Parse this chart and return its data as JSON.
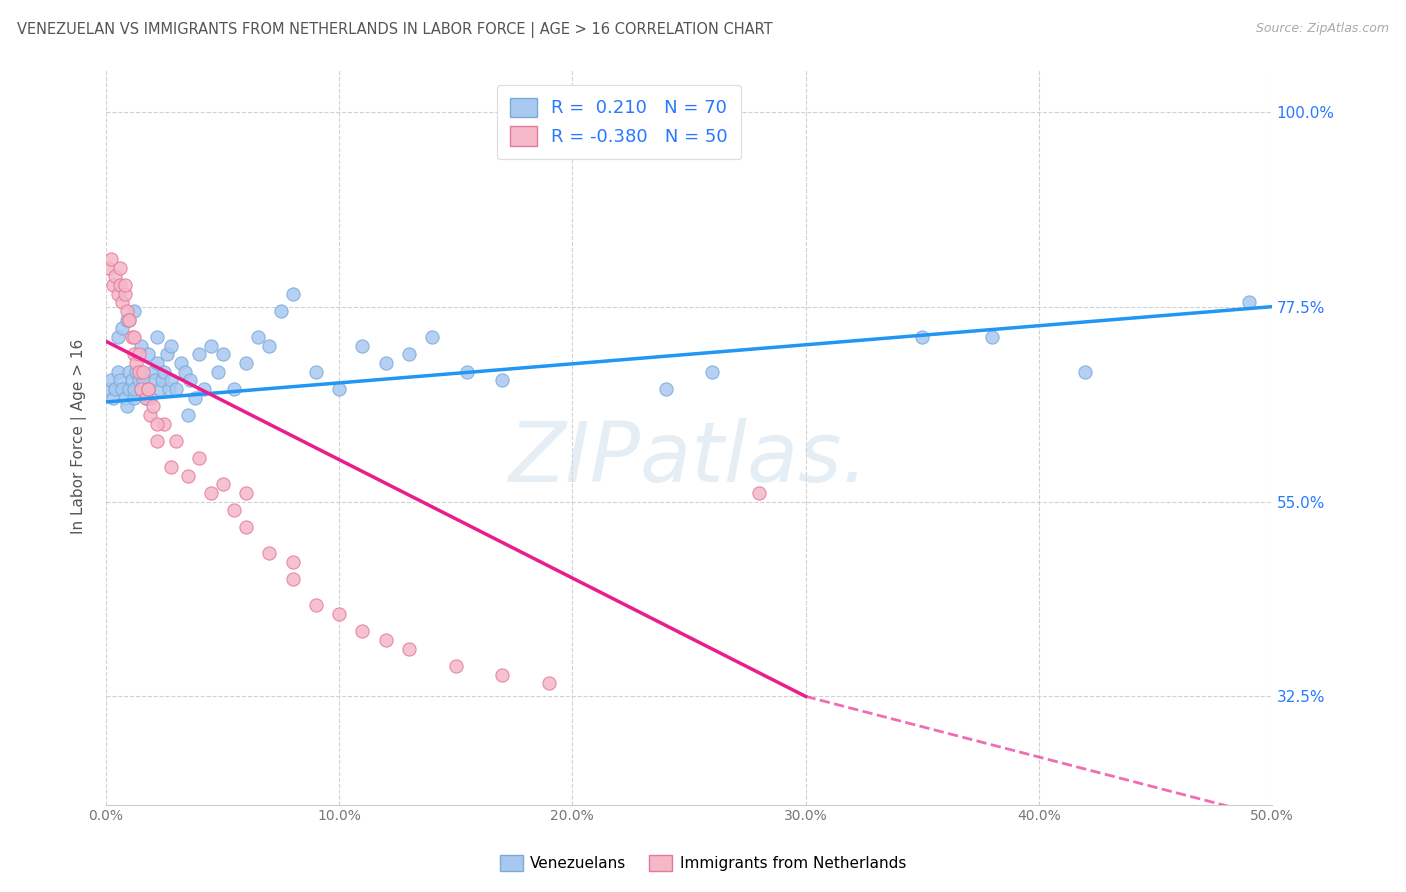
{
  "title": "VENEZUELAN VS IMMIGRANTS FROM NETHERLANDS IN LABOR FORCE | AGE > 16 CORRELATION CHART",
  "source": "Source: ZipAtlas.com",
  "ylabel": "In Labor Force | Age > 16",
  "xlim": [
    0.0,
    0.5
  ],
  "ylim": [
    0.2,
    1.05
  ],
  "yticks": [
    0.325,
    0.55,
    0.775,
    1.0
  ],
  "ytick_labels": [
    "32.5%",
    "55.0%",
    "77.5%",
    "100.0%"
  ],
  "xticks": [
    0.0,
    0.1,
    0.2,
    0.3,
    0.4,
    0.5
  ],
  "xtick_labels": [
    "0.0%",
    "10.0%",
    "20.0%",
    "30.0%",
    "40.0%",
    "50.0%"
  ],
  "blue_color": "#a8c8f0",
  "pink_color": "#f4b8c8",
  "blue_edge": "#7aaad8",
  "pink_edge": "#e8799a",
  "trend_blue": "#2196F3",
  "trend_pink": "#E91E8C",
  "legend_label_blue": "R =  0.210   N = 70",
  "legend_label_pink": "R = -0.380   N = 50",
  "legend_label_bottom_blue": "Venezuelans",
  "legend_label_bottom_pink": "Immigrants from Netherlands",
  "watermark": "ZIPatlas.",
  "background_color": "#ffffff",
  "title_color": "#555555",
  "axis_label_color": "#2979FF",
  "grid_color": "#cccccc",
  "blue_scatter_x": [
    0.001,
    0.002,
    0.003,
    0.004,
    0.005,
    0.006,
    0.007,
    0.008,
    0.009,
    0.01,
    0.01,
    0.011,
    0.012,
    0.012,
    0.013,
    0.014,
    0.015,
    0.015,
    0.016,
    0.017,
    0.018,
    0.019,
    0.02,
    0.021,
    0.022,
    0.023,
    0.024,
    0.025,
    0.026,
    0.027,
    0.028,
    0.03,
    0.032,
    0.034,
    0.036,
    0.038,
    0.04,
    0.042,
    0.045,
    0.048,
    0.05,
    0.055,
    0.06,
    0.065,
    0.07,
    0.075,
    0.08,
    0.09,
    0.1,
    0.11,
    0.12,
    0.13,
    0.14,
    0.155,
    0.17,
    0.005,
    0.007,
    0.009,
    0.012,
    0.015,
    0.018,
    0.022,
    0.028,
    0.035,
    0.24,
    0.26,
    0.35,
    0.38,
    0.42,
    0.49
  ],
  "blue_scatter_y": [
    0.68,
    0.69,
    0.67,
    0.68,
    0.7,
    0.69,
    0.68,
    0.67,
    0.66,
    0.7,
    0.68,
    0.69,
    0.67,
    0.68,
    0.7,
    0.69,
    0.68,
    0.7,
    0.69,
    0.67,
    0.68,
    0.67,
    0.7,
    0.69,
    0.71,
    0.68,
    0.69,
    0.7,
    0.72,
    0.68,
    0.69,
    0.68,
    0.71,
    0.7,
    0.69,
    0.67,
    0.72,
    0.68,
    0.73,
    0.7,
    0.72,
    0.68,
    0.71,
    0.74,
    0.73,
    0.77,
    0.79,
    0.7,
    0.68,
    0.73,
    0.71,
    0.72,
    0.74,
    0.7,
    0.69,
    0.74,
    0.75,
    0.76,
    0.77,
    0.73,
    0.72,
    0.74,
    0.73,
    0.65,
    0.68,
    0.7,
    0.74,
    0.74,
    0.7,
    0.78
  ],
  "pink_scatter_x": [
    0.001,
    0.002,
    0.003,
    0.004,
    0.005,
    0.006,
    0.007,
    0.008,
    0.009,
    0.01,
    0.011,
    0.012,
    0.013,
    0.014,
    0.015,
    0.016,
    0.017,
    0.018,
    0.019,
    0.02,
    0.022,
    0.025,
    0.028,
    0.03,
    0.035,
    0.04,
    0.045,
    0.05,
    0.055,
    0.06,
    0.07,
    0.08,
    0.09,
    0.1,
    0.11,
    0.12,
    0.13,
    0.15,
    0.17,
    0.19,
    0.006,
    0.008,
    0.01,
    0.012,
    0.014,
    0.018,
    0.022,
    0.28,
    0.06,
    0.08
  ],
  "pink_scatter_y": [
    0.82,
    0.83,
    0.8,
    0.81,
    0.79,
    0.8,
    0.78,
    0.79,
    0.77,
    0.76,
    0.74,
    0.72,
    0.71,
    0.7,
    0.68,
    0.7,
    0.67,
    0.68,
    0.65,
    0.66,
    0.62,
    0.64,
    0.59,
    0.62,
    0.58,
    0.6,
    0.56,
    0.57,
    0.54,
    0.56,
    0.49,
    0.46,
    0.43,
    0.42,
    0.4,
    0.39,
    0.38,
    0.36,
    0.35,
    0.34,
    0.82,
    0.8,
    0.76,
    0.74,
    0.72,
    0.68,
    0.64,
    0.56,
    0.52,
    0.48
  ],
  "trend_blue_x0": 0.0,
  "trend_blue_x1": 0.5,
  "trend_blue_y0": 0.665,
  "trend_blue_y1": 0.775,
  "trend_pink_x0": 0.0,
  "trend_pink_x1": 0.3,
  "trend_pink_y0": 0.735,
  "trend_pink_y1": 0.325,
  "trend_pink_dash_x0": 0.3,
  "trend_pink_dash_x1": 0.5,
  "trend_pink_dash_y0": 0.325,
  "trend_pink_dash_y1": 0.185
}
